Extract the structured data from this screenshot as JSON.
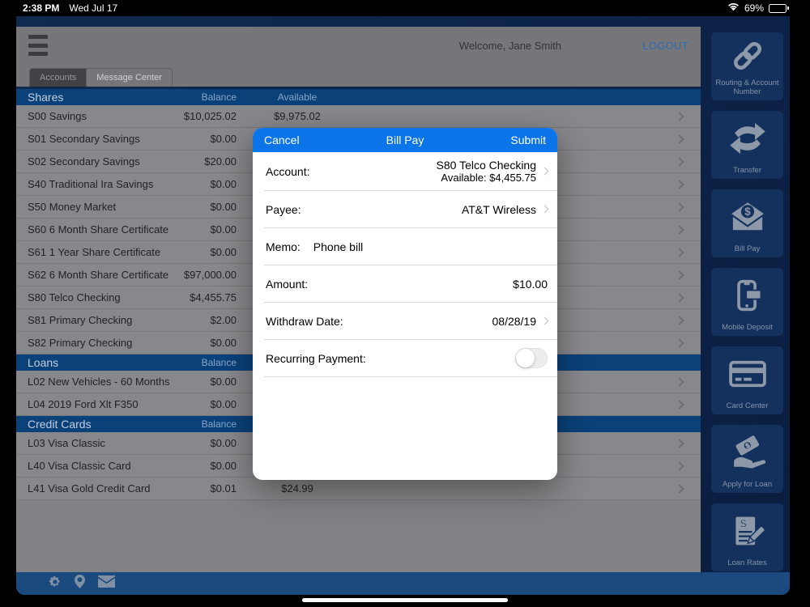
{
  "status_bar": {
    "time": "2:38 PM",
    "date": "Wed Jul 17",
    "battery_percent": "69%"
  },
  "header": {
    "welcome": "Welcome, Jane Smith",
    "logout": "LOGOUT",
    "tabs": [
      {
        "label": "Accounts",
        "selected": true
      },
      {
        "label": "Message Center",
        "selected": false
      }
    ]
  },
  "accounts": {
    "sections": [
      {
        "title": "Shares",
        "balance_col": "Balance",
        "available_col": "Available",
        "rows": [
          {
            "name": "S00 Savings",
            "balance": "$10,025.02",
            "available": "$9,975.02"
          },
          {
            "name": "S01 Secondary Savings",
            "balance": "$0.00",
            "available": ""
          },
          {
            "name": "S02 Secondary Savings",
            "balance": "$20.00",
            "available": ""
          },
          {
            "name": "S40 Traditional Ira Savings",
            "balance": "$0.00",
            "available": ""
          },
          {
            "name": "S50 Money Market",
            "balance": "$0.00",
            "available": ""
          },
          {
            "name": "S60 6 Month Share Certificate",
            "balance": "$0.00",
            "available": ""
          },
          {
            "name": "S61 1 Year Share Certificate",
            "balance": "$0.00",
            "available": ""
          },
          {
            "name": "S62 6 Month Share Certificate",
            "balance": "$97,000.00",
            "available": ""
          },
          {
            "name": "S80 Telco Checking",
            "balance": "$4,455.75",
            "available": ""
          },
          {
            "name": "S81 Primary Checking",
            "balance": "$2.00",
            "available": ""
          },
          {
            "name": "S82 Primary Checking",
            "balance": "$0.00",
            "available": ""
          }
        ]
      },
      {
        "title": "Loans",
        "balance_col": "Balance",
        "available_col": "",
        "rows": [
          {
            "name": "L02 New Vehicles - 60 Months",
            "balance": "$0.00",
            "available": ""
          },
          {
            "name": "L04 2019 Ford Xlt F350",
            "balance": "$0.00",
            "available": ""
          }
        ]
      },
      {
        "title": "Credit Cards",
        "balance_col": "Balance",
        "available_col": "",
        "rows": [
          {
            "name": "L03 Visa Classic",
            "balance": "$0.00",
            "available": ""
          },
          {
            "name": "L40 Visa Classic Card",
            "balance": "$0.00",
            "available": ""
          },
          {
            "name": "L41 Visa Gold Credit Card",
            "balance": "$0.01",
            "available": "$24.99"
          }
        ]
      }
    ]
  },
  "modal": {
    "cancel": "Cancel",
    "title": "Bill Pay",
    "submit": "Submit",
    "account_label": "Account:",
    "account_value_line1": "S80 Telco Checking",
    "account_value_line2": "Available: $4,455.75",
    "payee_label": "Payee:",
    "payee_value": "AT&T Wireless",
    "memo_label": "Memo:",
    "memo_value": "Phone bill",
    "amount_label": "Amount:",
    "amount_value": "$10.00",
    "withdraw_label": "Withdraw Date:",
    "withdraw_value": "08/28/19",
    "recurring_label": "Recurring Payment:",
    "recurring_state": "off"
  },
  "sidebar": {
    "items": [
      {
        "label": "Routing & Account Number",
        "icon": "link-icon"
      },
      {
        "label": "Transfer",
        "icon": "transfer-arrows-icon"
      },
      {
        "label": "Bill Pay",
        "icon": "envelope-dollar-icon"
      },
      {
        "label": "Mobile Deposit",
        "icon": "phone-check-icon"
      },
      {
        "label": "Card Center",
        "icon": "credit-card-icon"
      },
      {
        "label": "Apply for Loan",
        "icon": "hand-money-icon"
      },
      {
        "label": "Loan Rates",
        "icon": "document-pen-icon"
      }
    ]
  },
  "bottom_bar": {
    "icons": [
      "settings-gear-icon",
      "location-pin-icon",
      "mail-envelope-icon"
    ]
  },
  "colors": {
    "modal_accent_blue": "#0b74e9",
    "section_header_blue": "#0a4179",
    "app_navy": "#0c2246",
    "bottom_bar_blue": "#1b4b7e",
    "header_gray": "#76767a",
    "row_gray": "#88888c",
    "logout_blue": "#2d6bb0"
  }
}
